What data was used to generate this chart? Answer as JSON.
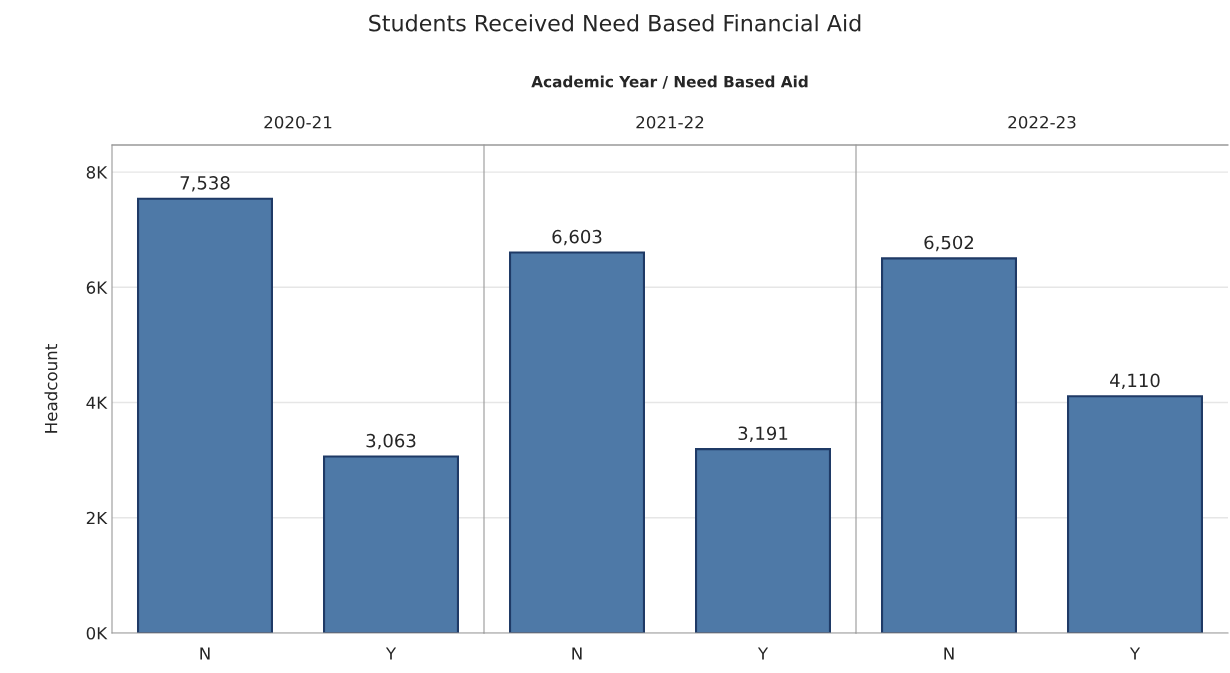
{
  "chart_data": [
    {
      "type": "bar",
      "title": "2020-21",
      "ylabel": "Headcount",
      "categories": [
        "N",
        "Y"
      ],
      "values": [
        7538,
        3063
      ],
      "value_labels": [
        "7,538",
        "3,063"
      ],
      "color": "#4e79a7",
      "ylim": [
        0,
        8470
      ],
      "yticks": [
        {
          "value": 0,
          "label": "0K"
        },
        {
          "value": 2000,
          "label": "2K"
        },
        {
          "value": 4000,
          "label": "4K"
        },
        {
          "value": 6000,
          "label": "6K"
        },
        {
          "value": 8000,
          "label": "8K"
        }
      ],
      "grid": "y",
      "annotations": [
        "Students Received Need Based Financial Aid",
        "Academic Year / Need Based Aid"
      ]
    },
    {
      "type": "bar",
      "title": "2021-22",
      "categories": [
        "N",
        "Y"
      ],
      "values": [
        6603,
        3191
      ],
      "value_labels": [
        "6,603",
        "3,191"
      ],
      "color": "#4e79a7",
      "ylim": [
        0,
        8470
      ],
      "yticks": [
        {
          "value": 0,
          "label": null
        },
        {
          "value": 2000,
          "label": null
        },
        {
          "value": 4000,
          "label": null
        },
        {
          "value": 6000,
          "label": null
        },
        {
          "value": 8000,
          "label": null
        }
      ],
      "grid": "y",
      "tick_labels": "x"
    },
    {
      "type": "bar",
      "title": "2022-23",
      "categories": [
        "N",
        "Y"
      ],
      "values": [
        6502,
        4110
      ],
      "value_labels": [
        "6,502",
        "4,110"
      ],
      "color": "#4e79a7",
      "ylim": [
        0,
        8470
      ],
      "yticks": [
        {
          "value": 0,
          "label": null
        },
        {
          "value": 2000,
          "label": null
        },
        {
          "value": 4000,
          "label": null
        },
        {
          "value": 6000,
          "label": null
        },
        {
          "value": 8000,
          "label": null
        }
      ],
      "grid": "y",
      "tick_labels": "x"
    }
  ]
}
